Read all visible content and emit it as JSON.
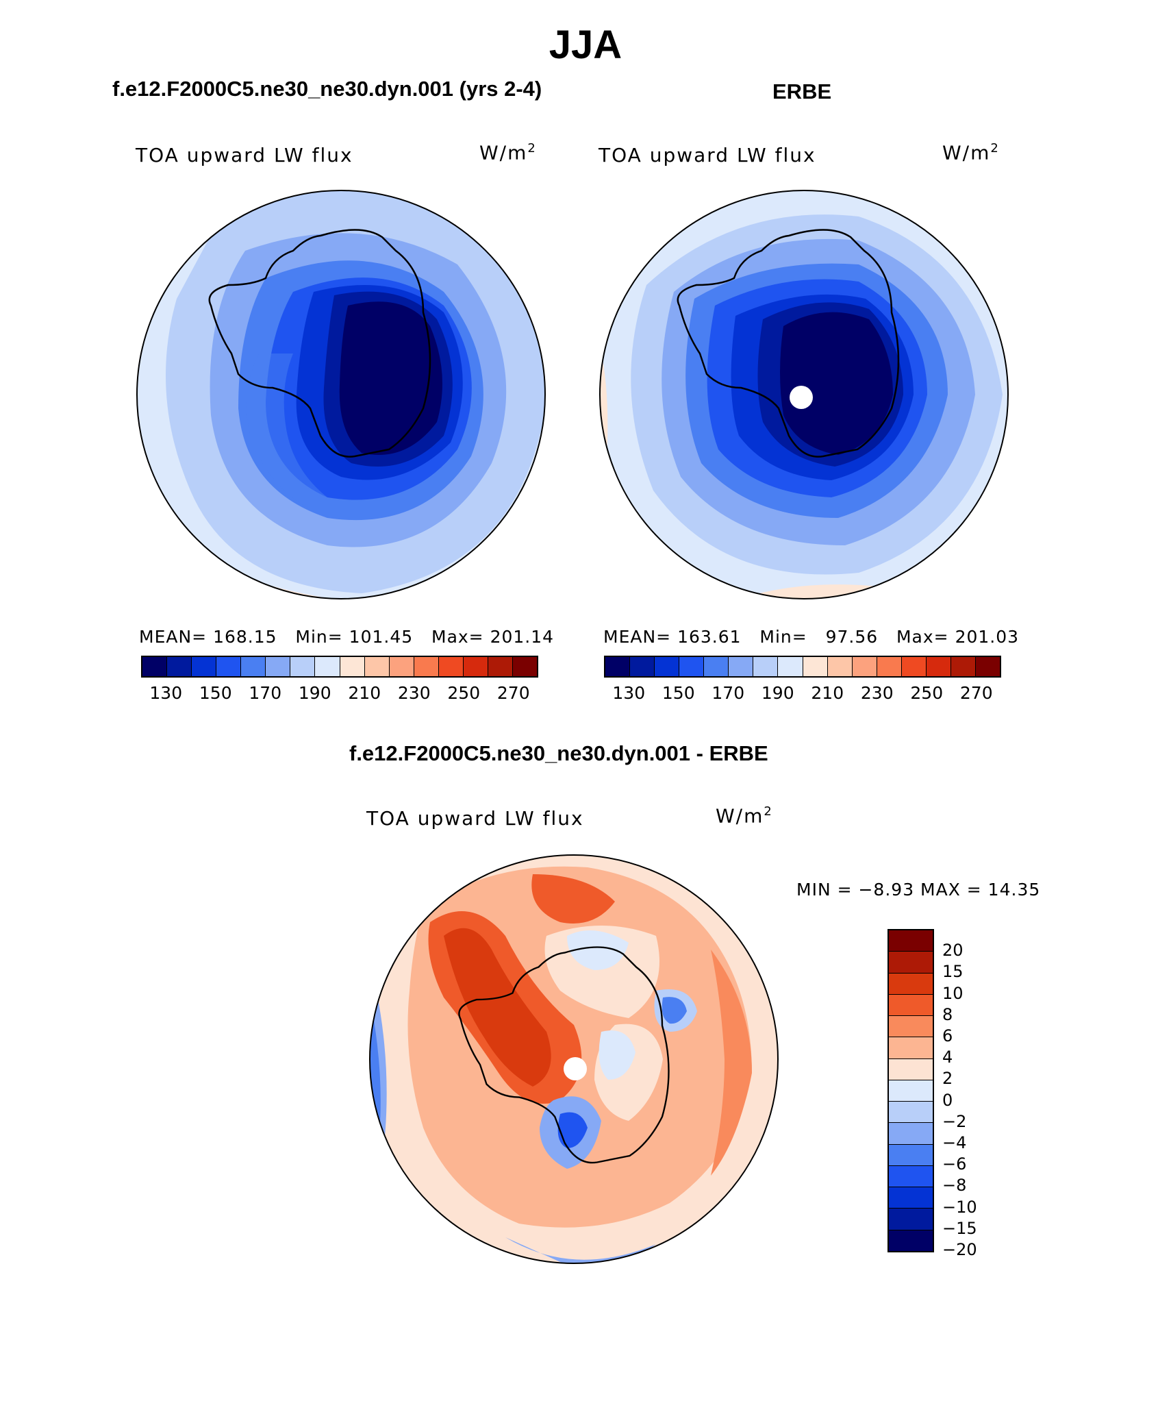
{
  "title": "JJA",
  "panels": [
    {
      "title": "f.e12.F2000C5.ne30_ne30.dyn.001 (yrs 2-4)",
      "variable": "TOA upward LW flux",
      "units_base": "W/m",
      "units_exp": "2",
      "stats": {
        "mean_label": "MEAN=",
        "mean": "168.15",
        "min_label": "Min=",
        "min": "101.45",
        "max_label": "Max=",
        "max": "201.14"
      }
    },
    {
      "title": "ERBE",
      "variable": "TOA upward LW flux",
      "units_base": "W/m",
      "units_exp": "2",
      "stats": {
        "mean_label": "MEAN=",
        "mean": "163.61",
        "min_label": "Min=",
        "min": "97.56",
        "max_label": "Max=",
        "max": "201.03"
      }
    }
  ],
  "diff_panel": {
    "title": "f.e12.F2000C5.ne30_ne30.dyn.001 - ERBE",
    "variable": "TOA upward LW flux",
    "units_base": "W/m",
    "units_exp": "2",
    "minmax": "MIN =   −8.93 MAX =   14.35"
  },
  "colorbar_top": {
    "colors": [
      "#000066",
      "#001a9e",
      "#0433d4",
      "#1f54f0",
      "#4a7ff2",
      "#86a9f5",
      "#b8cff9",
      "#dce9fc",
      "#fde6d6",
      "#fdc6a8",
      "#fca27e",
      "#f97a4e",
      "#ef4a22",
      "#d62a0d",
      "#ad1a06",
      "#7a0000"
    ],
    "labels": [
      "130",
      "150",
      "170",
      "190",
      "210",
      "230",
      "250",
      "270"
    ]
  },
  "colorbar_diff": {
    "colors": [
      "#7a0000",
      "#ad1a06",
      "#d93a0e",
      "#ef5a2a",
      "#f98a5c",
      "#fcb592",
      "#fde3d3",
      "#dce9fc",
      "#b8cff9",
      "#86a9f5",
      "#4a7ff2",
      "#1f54f0",
      "#0433d4",
      "#001a9e",
      "#000066"
    ],
    "labels": [
      "20",
      "15",
      "10",
      "8",
      "6",
      "4",
      "2",
      "0",
      "−2",
      "−4",
      "−6",
      "−8",
      "−10",
      "−15",
      "−20"
    ]
  }
}
